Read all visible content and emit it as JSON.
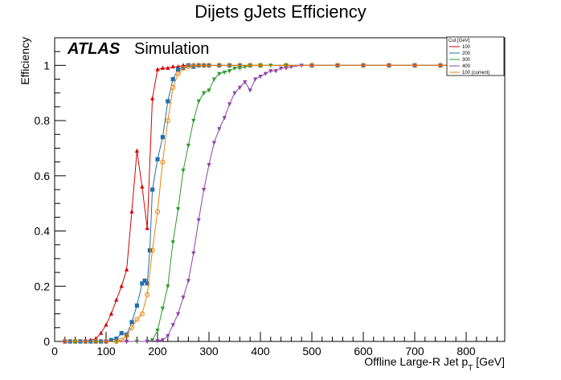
{
  "chart_data": {
    "type": "line",
    "title": "Dijets gJets Efficiency",
    "xlabel_main": "Offline Large-R Jet p",
    "xlabel_sub": "T",
    "xlabel_unit": " [GeV]",
    "ylabel": "Efficiency",
    "atlas_label": "ATLAS",
    "atlas_sublabel": "Simulation",
    "xlim": [
      0,
      875
    ],
    "ylim": [
      0,
      1.1
    ],
    "xticks": [
      0,
      100,
      200,
      300,
      400,
      500,
      600,
      700,
      800
    ],
    "yticks": [
      0,
      0.2,
      0.4,
      0.6,
      0.8,
      1
    ],
    "legend": {
      "title": "Cut [GeV]",
      "placement": "top-right"
    },
    "series": [
      {
        "name": "100",
        "color": "#d40000",
        "marker": "triangle-up",
        "x": [
          20,
          30,
          40,
          50,
          60,
          70,
          80,
          90,
          100,
          110,
          120,
          130,
          140,
          150,
          160,
          170,
          180,
          190,
          200,
          210,
          220,
          230,
          240,
          250,
          260,
          270,
          280,
          290,
          300,
          320,
          340,
          360,
          380,
          400,
          450,
          500,
          550,
          600,
          650,
          700,
          750,
          800,
          850
        ],
        "y": [
          0,
          0,
          0,
          0,
          0,
          0.005,
          0.01,
          0.03,
          0.06,
          0.1,
          0.15,
          0.2,
          0.26,
          0.47,
          0.69,
          0.56,
          0.41,
          0.88,
          0.985,
          0.99,
          0.99,
          0.995,
          0.995,
          1,
          1,
          1,
          1,
          1,
          1,
          1,
          1,
          1,
          1,
          1,
          1,
          1,
          1,
          1,
          1,
          1,
          1,
          1,
          1
        ]
      },
      {
        "name": "200",
        "color": "#1f6fae",
        "marker": "square",
        "x": [
          20,
          30,
          40,
          50,
          60,
          70,
          80,
          90,
          100,
          110,
          120,
          130,
          140,
          150,
          160,
          170,
          175,
          180,
          185,
          190,
          200,
          210,
          220,
          230,
          240,
          250,
          260,
          270,
          280,
          290,
          300,
          320,
          340,
          360,
          380,
          400,
          450,
          500,
          550,
          600,
          650,
          700,
          750,
          800,
          850
        ],
        "y": [
          0,
          0,
          0,
          0,
          0,
          0,
          0,
          0,
          0,
          0.005,
          0.01,
          0.03,
          0.025,
          0.07,
          0.13,
          0.21,
          0.22,
          0.21,
          0.33,
          0.55,
          0.66,
          0.74,
          0.87,
          0.95,
          0.985,
          0.99,
          1,
          0.995,
          1,
          1,
          1,
          1,
          1,
          1,
          1,
          1,
          1,
          1,
          1,
          1,
          1,
          1,
          1,
          1,
          1
        ]
      },
      {
        "name": "300",
        "color": "#2a9a2a",
        "marker": "triangle-down",
        "x": [
          20,
          40,
          60,
          80,
          100,
          120,
          140,
          160,
          180,
          190,
          200,
          210,
          220,
          230,
          240,
          250,
          260,
          270,
          280,
          290,
          300,
          310,
          320,
          330,
          340,
          350,
          360,
          370,
          380,
          400,
          420,
          450,
          500,
          550,
          600,
          650,
          700,
          750,
          800,
          850
        ],
        "y": [
          0,
          0,
          0,
          0,
          0,
          0,
          0,
          0,
          0,
          0.005,
          0.04,
          0.12,
          0.2,
          0.36,
          0.48,
          0.62,
          0.71,
          0.8,
          0.87,
          0.9,
          0.91,
          0.95,
          0.97,
          0.975,
          0.98,
          0.99,
          0.99,
          0.995,
          1,
          1,
          1,
          1,
          1,
          1,
          1,
          1,
          1,
          1,
          1,
          1
        ]
      },
      {
        "name": "400",
        "color": "#9040a8",
        "marker": "triangle-down",
        "x": [
          20,
          60,
          100,
          140,
          180,
          200,
          210,
          220,
          230,
          240,
          250,
          260,
          270,
          280,
          290,
          300,
          310,
          320,
          330,
          340,
          350,
          360,
          370,
          380,
          390,
          400,
          410,
          420,
          430,
          440,
          450,
          460,
          480,
          500,
          550,
          600,
          650,
          700,
          750,
          800,
          850
        ],
        "y": [
          0,
          0,
          0,
          0,
          0,
          0.002,
          0.005,
          0.02,
          0.06,
          0.1,
          0.16,
          0.22,
          0.32,
          0.44,
          0.55,
          0.64,
          0.72,
          0.77,
          0.81,
          0.86,
          0.9,
          0.92,
          0.94,
          0.91,
          0.95,
          0.96,
          0.97,
          0.98,
          0.98,
          0.99,
          0.99,
          0.995,
          1,
          1,
          1,
          1,
          1,
          1,
          1,
          1,
          1
        ]
      },
      {
        "name": "100 (current)",
        "color": "#e8820c",
        "marker": "circle-open",
        "x": [
          20,
          40,
          60,
          80,
          100,
          120,
          130,
          140,
          150,
          160,
          170,
          180,
          190,
          200,
          210,
          220,
          230,
          240,
          250,
          260,
          270,
          280,
          290,
          300,
          320,
          340,
          360,
          380,
          400,
          450,
          500,
          550,
          600,
          650,
          700,
          750,
          800,
          850
        ],
        "y": [
          0,
          0,
          0,
          0,
          0,
          0,
          0.005,
          0.02,
          0.05,
          0.08,
          0.1,
          0.17,
          0.33,
          0.47,
          0.65,
          0.8,
          0.92,
          0.97,
          0.99,
          0.995,
          1,
          1,
          1,
          1,
          1,
          1,
          1,
          1,
          1,
          1,
          1,
          1,
          1,
          1,
          1,
          1,
          1,
          1
        ]
      }
    ]
  }
}
